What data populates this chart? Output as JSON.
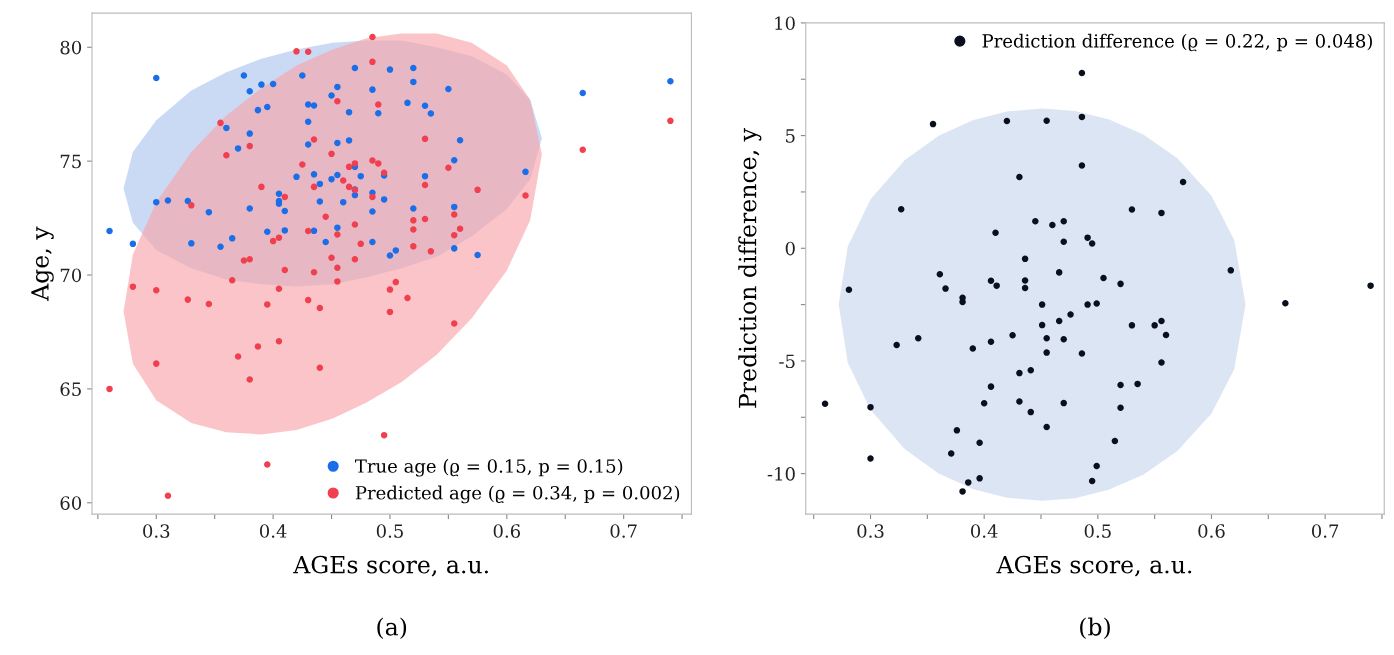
{
  "chart_data": [
    {
      "type": "scatter",
      "xlabel": "AGEs score, a.u.",
      "ylabel": "Age, y",
      "annotations": [
        "(a)"
      ],
      "xlim": [
        0.245,
        0.758
      ],
      "ylim": [
        59.5,
        81.5
      ],
      "xticks": [
        {
          "value": 0.25,
          "label": null
        },
        0.3,
        {
          "value": 0.35,
          "label": null
        },
        0.4,
        {
          "value": 0.45,
          "label": null
        },
        0.5,
        {
          "value": 0.55,
          "label": null
        },
        0.6,
        {
          "value": 0.65,
          "label": null
        },
        0.7,
        {
          "value": 0.75,
          "label": null
        }
      ],
      "yticks": [
        60,
        65,
        70,
        75,
        80
      ],
      "grid": false,
      "legend": "bottom right",
      "marker": "circle",
      "series": [
        {
          "type": "line",
          "color": "#aec4ee",
          "x": [
            0.272,
            0.28,
            0.3,
            0.33,
            0.36,
            0.39,
            0.42,
            0.451,
            0.48,
            0.51,
            0.54,
            0.57,
            0.6,
            0.62,
            0.63
          ],
          "values": [
            null,
            null,
            null,
            null,
            null,
            null,
            null,
            null,
            null,
            null,
            null,
            null,
            null,
            null,
            null
          ],
          "lower": [
            73.8,
            72.3,
            71.1,
            70.3,
            69.8,
            69.6,
            69.5,
            69.6,
            69.9,
            70.3,
            70.8,
            71.7,
            72.9,
            74.2,
            76.0
          ],
          "upper": [
            73.8,
            75.4,
            76.8,
            78.1,
            78.9,
            79.5,
            79.9,
            80.2,
            80.3,
            80.3,
            80.0,
            79.6,
            78.8,
            77.7,
            76.0
          ]
        },
        {
          "type": "line",
          "color": "#f8a5aa",
          "x": [
            0.272,
            0.28,
            0.3,
            0.33,
            0.36,
            0.39,
            0.42,
            0.451,
            0.48,
            0.51,
            0.54,
            0.57,
            0.6,
            0.62,
            0.63
          ],
          "values": [
            null,
            null,
            null,
            null,
            null,
            null,
            null,
            null,
            null,
            null,
            null,
            null,
            null,
            null,
            null
          ],
          "lower": [
            68.4,
            66.1,
            64.5,
            63.5,
            63.1,
            63.0,
            63.2,
            63.7,
            64.4,
            65.3,
            66.5,
            68.1,
            70.2,
            72.4,
            75.3
          ],
          "upper": [
            68.4,
            70.9,
            73.2,
            75.4,
            77.0,
            78.2,
            79.2,
            79.9,
            80.4,
            80.6,
            80.6,
            80.2,
            79.2,
            77.7,
            75.3
          ]
        },
        {
          "name": "True age (ϱ = 0.15, p = 0.15)",
          "color": "#1a6ee8",
          "x": [
            0.3,
            0.375,
            0.425,
            0.38,
            0.39,
            0.4,
            0.47,
            0.5,
            0.485,
            0.455,
            0.45,
            0.387,
            0.395,
            0.43,
            0.435,
            0.465,
            0.49,
            0.36,
            0.38,
            0.43,
            0.37,
            0.43,
            0.455,
            0.465,
            0.42,
            0.435,
            0.44,
            0.45,
            0.455,
            0.47,
            0.475,
            0.47,
            0.47,
            0.495,
            0.485,
            0.495,
            0.3,
            0.31,
            0.327,
            0.345,
            0.38,
            0.405,
            0.405,
            0.405,
            0.41,
            0.44,
            0.46,
            0.485,
            0.26,
            0.28,
            0.33,
            0.355,
            0.365,
            0.395,
            0.41,
            0.435,
            0.445,
            0.455,
            0.485,
            0.5,
            0.52,
            0.52,
            0.55,
            0.515,
            0.53,
            0.535,
            0.56,
            0.555,
            0.53,
            0.616,
            0.52,
            0.555,
            0.505,
            0.555,
            0.575,
            0.665,
            0.74
          ],
          "values": [
            78.65,
            78.76,
            78.76,
            78.07,
            78.36,
            78.39,
            79.09,
            79.02,
            78.14,
            78.26,
            77.88,
            77.24,
            77.38,
            77.49,
            77.44,
            77.15,
            77.1,
            76.46,
            76.21,
            76.73,
            75.56,
            75.73,
            75.8,
            75.91,
            74.31,
            74.42,
            74.0,
            74.21,
            74.39,
            74.75,
            74.34,
            73.76,
            73.51,
            74.37,
            73.61,
            73.32,
            73.2,
            73.27,
            73.25,
            72.76,
            72.92,
            73.57,
            73.25,
            73.13,
            72.81,
            73.23,
            73.2,
            72.79,
            71.93,
            71.37,
            71.39,
            71.24,
            71.61,
            71.9,
            71.96,
            71.94,
            71.45,
            72.08,
            71.45,
            70.86,
            79.09,
            78.48,
            78.17,
            77.56,
            77.43,
            77.09,
            75.92,
            75.04,
            74.34,
            74.53,
            72.92,
            72.99,
            71.08,
            71.17,
            70.88,
            77.99,
            78.51
          ]
        },
        {
          "name": "Predicted age (ϱ = 0.34, p = 0.002)",
          "color": "#f0404f",
          "x": [
            0.485,
            0.42,
            0.43,
            0.485,
            0.455,
            0.49,
            0.355,
            0.36,
            0.38,
            0.435,
            0.45,
            0.425,
            0.465,
            0.47,
            0.485,
            0.49,
            0.495,
            0.46,
            0.465,
            0.47,
            0.435,
            0.39,
            0.41,
            0.485,
            0.33,
            0.445,
            0.47,
            0.43,
            0.455,
            0.405,
            0.4,
            0.475,
            0.375,
            0.38,
            0.45,
            0.47,
            0.41,
            0.435,
            0.455,
            0.455,
            0.365,
            0.28,
            0.3,
            0.327,
            0.345,
            0.395,
            0.405,
            0.43,
            0.44,
            0.5,
            0.5,
            0.37,
            0.387,
            0.405,
            0.3,
            0.38,
            0.44,
            0.26,
            0.495,
            0.395,
            0.31,
            0.53,
            0.55,
            0.53,
            0.575,
            0.616,
            0.52,
            0.53,
            0.555,
            0.52,
            0.56,
            0.555,
            0.52,
            0.535,
            0.505,
            0.515,
            0.555,
            0.665,
            0.74
          ],
          "values": [
            80.45,
            79.82,
            79.8,
            79.36,
            77.63,
            77.49,
            76.68,
            75.26,
            75.66,
            75.95,
            75.32,
            74.85,
            74.75,
            74.9,
            75.03,
            74.9,
            74.49,
            74.15,
            73.87,
            73.73,
            73.87,
            73.87,
            73.43,
            73.43,
            73.06,
            72.56,
            72.22,
            71.93,
            71.78,
            71.64,
            71.49,
            71.37,
            70.64,
            70.69,
            70.76,
            70.69,
            70.22,
            70.12,
            70.32,
            69.72,
            69.77,
            69.49,
            69.33,
            68.92,
            68.73,
            68.71,
            69.4,
            68.9,
            68.55,
            69.36,
            68.38,
            66.42,
            66.86,
            67.09,
            66.11,
            65.41,
            65.93,
            65.0,
            62.97,
            61.68,
            60.31,
            75.98,
            74.71,
            73.95,
            73.74,
            73.49,
            72.4,
            72.46,
            72.66,
            72.0,
            72.03,
            71.75,
            71.26,
            71.04,
            69.69,
            68.99,
            67.87,
            75.5,
            76.77
          ]
        }
      ]
    },
    {
      "type": "scatter",
      "xlabel": "AGEs score, a.u.",
      "ylabel": "Prediction difference, y",
      "annotations": [
        "(b)"
      ],
      "xlim": [
        0.243,
        0.752
      ],
      "ylim": [
        -11.8,
        10
      ],
      "xticks": [
        {
          "value": 0.25,
          "label": null
        },
        0.3,
        {
          "value": 0.35,
          "label": null
        },
        0.4,
        {
          "value": 0.45,
          "label": null
        },
        0.5,
        {
          "value": 0.55,
          "label": null
        },
        0.6,
        {
          "value": 0.65,
          "label": null
        },
        0.7,
        {
          "value": 0.75,
          "label": null
        }
      ],
      "yticks": [
        -10,
        {
          "value": -7.5,
          "label": null
        },
        -5,
        {
          "value": -2.5,
          "label": null
        },
        0,
        {
          "value": 2.5,
          "label": null
        },
        5,
        {
          "value": 7.5,
          "label": null
        },
        10
      ],
      "grid": false,
      "legend": "top right",
      "marker": "circle",
      "series": [
        {
          "type": "line",
          "color": "#c9d7ec",
          "x": [
            0.272,
            0.28,
            0.3,
            0.33,
            0.36,
            0.39,
            0.42,
            0.451,
            0.48,
            0.51,
            0.54,
            0.57,
            0.6,
            0.62,
            0.63
          ],
          "values": [
            null,
            null,
            null,
            null,
            null,
            null,
            null,
            null,
            null,
            null,
            null,
            null,
            null,
            null,
            null
          ],
          "lower": [
            -2.5,
            -5.08,
            -7.17,
            -8.91,
            -9.99,
            -10.68,
            -11.07,
            -11.2,
            -11.09,
            -10.71,
            -10.05,
            -9.0,
            -7.33,
            -5.37,
            -2.5
          ],
          "upper": [
            -2.5,
            0.08,
            2.17,
            3.91,
            4.99,
            5.68,
            6.07,
            6.2,
            6.09,
            5.71,
            5.05,
            4.0,
            2.33,
            0.37,
            -2.5
          ]
        },
        {
          "name": "Prediction difference (ϱ = 0.22, p = 0.048)",
          "color": "#0a0f1e",
          "x": [
            0.486,
            0.355,
            0.42,
            0.455,
            0.486,
            0.486,
            0.431,
            0.327,
            0.445,
            0.46,
            0.47,
            0.41,
            0.47,
            0.491,
            0.495,
            0.436,
            0.466,
            0.361,
            0.366,
            0.406,
            0.411,
            0.436,
            0.436,
            0.381,
            0.381,
            0.281,
            0.451,
            0.491,
            0.476,
            0.466,
            0.451,
            0.425,
            0.455,
            0.47,
            0.342,
            0.323,
            0.406,
            0.39,
            0.455,
            0.486,
            0.431,
            0.441,
            0.406,
            0.26,
            0.3,
            0.4,
            0.431,
            0.441,
            0.47,
            0.455,
            0.376,
            0.396,
            0.371,
            0.3,
            0.396,
            0.386,
            0.381,
            0.495,
            0.575,
            0.53,
            0.556,
            0.617,
            0.74,
            0.665,
            0.505,
            0.52,
            0.499,
            0.53,
            0.55,
            0.556,
            0.56,
            0.556,
            0.52,
            0.535,
            0.52,
            0.515,
            0.499
          ],
          "values": [
            7.78,
            5.51,
            5.65,
            5.66,
            5.83,
            3.67,
            3.16,
            1.73,
            1.2,
            1.03,
            1.2,
            0.69,
            0.29,
            0.47,
            0.21,
            -0.47,
            -1.07,
            -1.15,
            -1.79,
            -1.44,
            -1.66,
            -1.43,
            -1.76,
            -2.2,
            -2.38,
            -1.84,
            -2.5,
            -2.5,
            -2.94,
            -3.23,
            -3.41,
            -3.86,
            -3.99,
            -4.04,
            -3.99,
            -4.29,
            -4.15,
            -4.45,
            -4.63,
            -4.67,
            -5.54,
            -5.41,
            -6.14,
            -6.9,
            -7.05,
            -6.88,
            -6.8,
            -7.27,
            -6.87,
            -7.93,
            -8.08,
            -8.63,
            -9.11,
            -9.33,
            -10.21,
            -10.39,
            -10.79,
            -10.33,
            2.94,
            1.72,
            1.57,
            -0.98,
            -1.66,
            -2.44,
            -1.32,
            -1.58,
            -2.45,
            -3.42,
            -3.42,
            -3.23,
            -3.85,
            -5.07,
            -6.07,
            -6.02,
            -7.08,
            -8.55,
            -9.66
          ]
        }
      ]
    }
  ]
}
